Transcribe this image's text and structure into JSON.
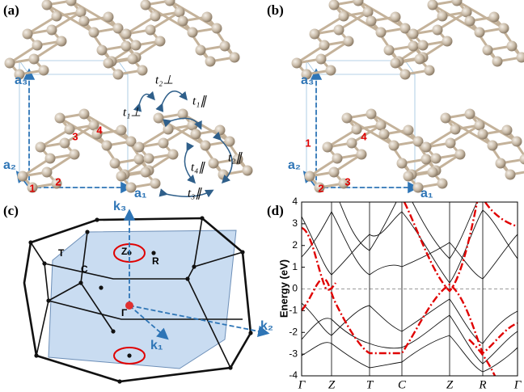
{
  "panels": {
    "a": {
      "label": "(a)",
      "lattice": [
        "a₁",
        "a₂",
        "a₃"
      ],
      "sites": [
        "1",
        "2",
        "3",
        "4"
      ],
      "hoppings": [
        "t₁⊥",
        "t₂⊥",
        "t₁∥",
        "t₂∥",
        "t₃∥",
        "t₄∥"
      ]
    },
    "b": {
      "label": "(b)",
      "lattice": [
        "a₁",
        "a₂",
        "a₃"
      ],
      "sites": [
        "1",
        "2",
        "3",
        "4"
      ]
    },
    "c": {
      "label": "(c)",
      "reciprocal": [
        "k₁",
        "k₂",
        "k₃"
      ],
      "points": [
        "Z",
        "T",
        "C",
        "R",
        "Γ"
      ]
    },
    "d": {
      "label": "(d)",
      "y_label": "Energy (eV)",
      "ylim": [
        -4,
        4
      ],
      "yticks": [
        4,
        3,
        2,
        1,
        0,
        -1,
        -2,
        -3,
        -4
      ],
      "path": [
        "Γ",
        "Z",
        "T",
        "C",
        "Z",
        "R",
        "Γ"
      ]
    }
  }
}
